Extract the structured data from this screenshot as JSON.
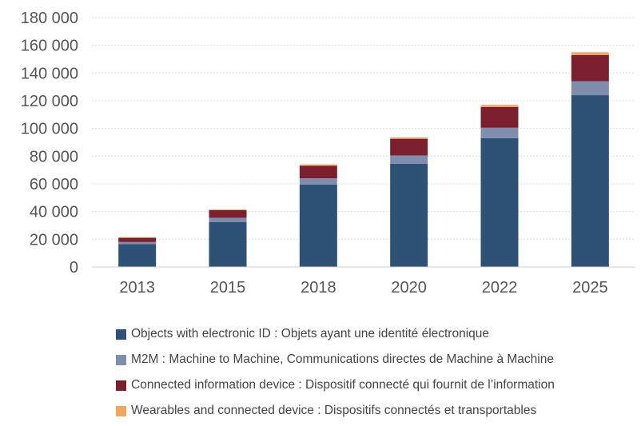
{
  "chart_data": {
    "type": "bar",
    "stacked": true,
    "categories": [
      "2013",
      "2015",
      "2018",
      "2020",
      "2022",
      "2025"
    ],
    "series": [
      {
        "name": "Objects with electronic ID : Objets ayant une identité électronique",
        "color": "#2e5276",
        "values": [
          16500,
          32500,
          59500,
          74500,
          93000,
          124000
        ]
      },
      {
        "name": "M2M : Machine to Machine, Communications directes de Machine à Machine",
        "color": "#7f8eac",
        "values": [
          1500,
          3000,
          4500,
          6000,
          7500,
          10000
        ]
      },
      {
        "name": "Connected information device : Dispositif connecté qui fournit de l’information",
        "color": "#7b1f2e",
        "values": [
          3000,
          5500,
          9000,
          12000,
          15000,
          19000
        ]
      },
      {
        "name": "Wearables and connected device : Dispositifs connectés et transportables",
        "color": "#f2a65e",
        "values": [
          500,
          500,
          1000,
          1000,
          1500,
          2000
        ]
      }
    ],
    "ylim": [
      0,
      180000
    ],
    "yticks": [
      "0",
      "20 000",
      "40 000",
      "60 000",
      "80 000",
      "100 000",
      "120 000",
      "140 000",
      "160 000",
      "180 000"
    ],
    "grid": true,
    "legend_placement": "bottom"
  }
}
